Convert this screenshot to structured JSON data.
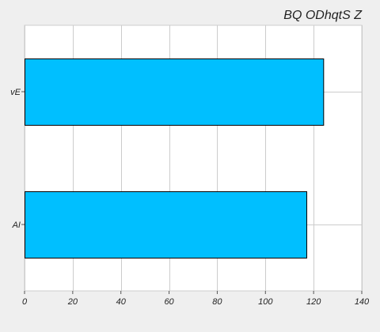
{
  "chart_data": {
    "type": "bar",
    "orientation": "horizontal",
    "title": "BQ ODhqtS Z",
    "categories": [
      "vE",
      "AI"
    ],
    "values": [
      124,
      117
    ],
    "xlim": [
      0,
      140
    ],
    "x_ticks": [
      "0",
      "20",
      "40",
      "60",
      "80",
      "100",
      "120",
      "140"
    ],
    "grid": true,
    "colors": {
      "bar_fill": "#00bfff",
      "bar_edge": "#000000",
      "plot_background": "#ffffff",
      "figure_background": "#efefef",
      "grid": "#cccccc"
    }
  }
}
